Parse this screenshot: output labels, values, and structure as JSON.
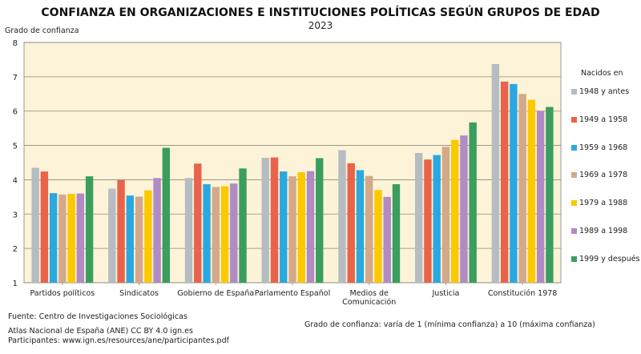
{
  "chart_data": {
    "type": "bar",
    "title": "CONFIANZA EN ORGANIZACIONES E INSTITUCIONES POLÍTICAS SEGÚN GRUPOS DE EDAD",
    "subtitle": "2023",
    "ylabel": "Grado de confianza",
    "ylim": [
      1,
      8
    ],
    "yticks": [
      "1",
      "2",
      "3",
      "4",
      "5",
      "6",
      "7",
      "8"
    ],
    "grid": true,
    "legend_title": "Nacidos en",
    "legend_position": "right",
    "categories": [
      "Partidos políticos",
      "Sindicatos",
      "Gobierno de España",
      "Parlamento Español",
      "Medios de\nComunicación",
      "Justicia",
      "Constitución 1978"
    ],
    "series": [
      {
        "name": "1948 y antes",
        "color": "#b5bdc2",
        "values": [
          4.35,
          3.74,
          4.05,
          4.64,
          4.86,
          4.78,
          7.37
        ]
      },
      {
        "name": "1949 a 1958",
        "color": "#e9634a",
        "values": [
          4.24,
          3.99,
          4.47,
          4.65,
          4.48,
          4.59,
          6.86
        ]
      },
      {
        "name": "1959 a 1968",
        "color": "#2aa8e0",
        "values": [
          3.61,
          3.54,
          3.87,
          4.24,
          4.28,
          4.72,
          6.79
        ]
      },
      {
        "name": "1969 a 1978",
        "color": "#d3a98a",
        "values": [
          3.57,
          3.51,
          3.79,
          4.1,
          4.11,
          4.96,
          6.5
        ]
      },
      {
        "name": "1979 a 1988",
        "color": "#fcc800",
        "values": [
          3.59,
          3.69,
          3.81,
          4.22,
          3.7,
          5.16,
          6.33
        ]
      },
      {
        "name": "1989 a 1998",
        "color": "#b08bc4",
        "values": [
          3.6,
          4.05,
          3.89,
          4.25,
          3.5,
          5.29,
          6.01
        ]
      },
      {
        "name": "1999 y después",
        "color": "#3a9e5f",
        "values": [
          4.1,
          4.93,
          4.33,
          4.63,
          3.87,
          5.67,
          6.12
        ]
      }
    ],
    "background_color": "#fdf3d8"
  },
  "notes": {
    "source": "Fuente: Centro de Investigaciones Sociológicas",
    "scale": "Grado de confianza: varía de 1 (mínima confianza) a 10 (máxima confianza)",
    "atlas": "Atlas Nacional de España (ANE) CC BY 4.0 ign.es",
    "participants": "Participantes: www.ign.es/resources/ane/participantes.pdf"
  }
}
